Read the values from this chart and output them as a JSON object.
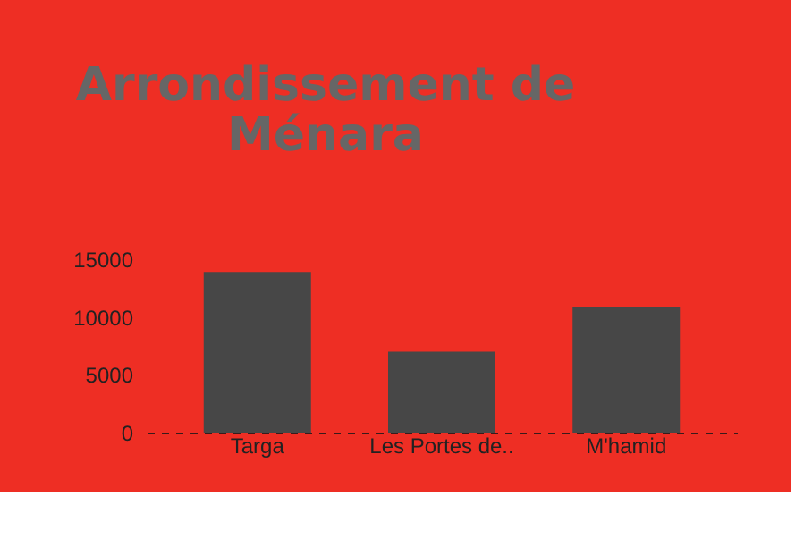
{
  "chart_data": {
    "type": "bar",
    "title": [
      "Arrondissement de",
      "Ménara"
    ],
    "categories": [
      "Targa",
      "Les Portes de..",
      "M'hamid"
    ],
    "values": [
      13900,
      7000,
      10900
    ],
    "color": "#474747",
    "ylim": [
      0,
      15000
    ],
    "yticks": [
      0,
      5000,
      10000,
      15000
    ],
    "grid": false
  }
}
